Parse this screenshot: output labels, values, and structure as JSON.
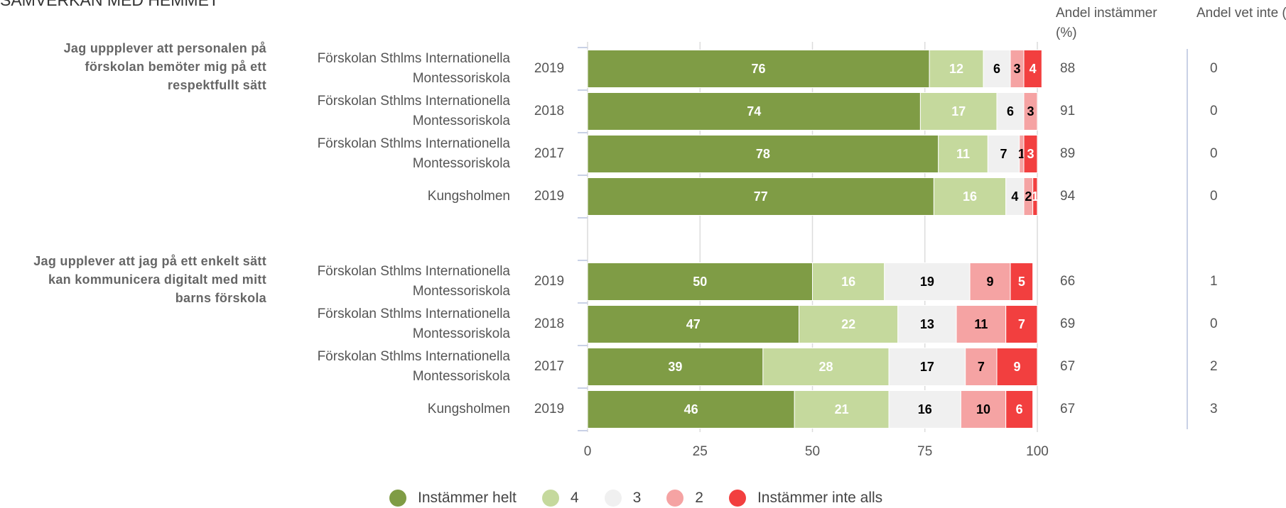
{
  "chart_data": {
    "type": "bar",
    "stacked": true,
    "orientation": "horizontal",
    "title": "SAMVERKAN MED HEMMET",
    "groups": [
      {
        "label": "Jag uppplever att personalen på förskolan bemöter mig på ett respektfullt sätt",
        "categories": [
          "Förskolan Sthlms Internationella Montessoriskola",
          "Förskolan Sthlms Internationella Montessoriskola",
          "Förskolan Sthlms Internationella Montessoriskola",
          "Kungsholmen"
        ],
        "years": [
          "2019",
          "2018",
          "2017",
          "2019"
        ]
      },
      {
        "label": "Jag upplever att jag på ett enkelt sätt kan kommunicera digitalt med mitt barns förskola",
        "categories": [
          "Förskolan Sthlms Internationella Montessoriskola",
          "Förskolan Sthlms Internationella Montessoriskola",
          "Förskolan Sthlms Internationella Montessoriskola",
          "Kungsholmen"
        ],
        "years": [
          "2019",
          "2018",
          "2017",
          "2019"
        ]
      }
    ],
    "series": [
      {
        "name": "Instämmer helt",
        "color": "#7f9c45",
        "label_color": "#ffffff",
        "values": [
          76,
          74,
          78,
          77,
          50,
          47,
          39,
          46
        ]
      },
      {
        "name": "4",
        "color": "#c5d99d",
        "label_color": "#ffffff",
        "values": [
          12,
          17,
          11,
          16,
          16,
          22,
          28,
          21
        ]
      },
      {
        "name": "3",
        "color": "#f0f0f0",
        "label_color": "#000000",
        "values": [
          6,
          6,
          7,
          4,
          19,
          13,
          17,
          16
        ]
      },
      {
        "name": "2",
        "color": "#f5a3a3",
        "label_color": "#000000",
        "values": [
          3,
          3,
          1,
          2,
          9,
          11,
          7,
          10
        ]
      },
      {
        "name": "Instämmer inte alls",
        "color": "#f23f3f",
        "label_color": "#ffffff",
        "values": [
          4,
          0,
          3,
          1,
          5,
          7,
          9,
          6
        ]
      }
    ],
    "columns": [
      {
        "label": "Andel instämmer (%)",
        "values": [
          88,
          91,
          89,
          94,
          66,
          69,
          67,
          67
        ]
      },
      {
        "label": "Andel vet inte (%)",
        "values": [
          0,
          0,
          0,
          0,
          1,
          0,
          2,
          3
        ]
      }
    ],
    "xlim": [
      0,
      100
    ],
    "xticks": [
      0,
      25,
      50,
      75,
      100
    ],
    "grid": true,
    "legend": "bottom"
  }
}
